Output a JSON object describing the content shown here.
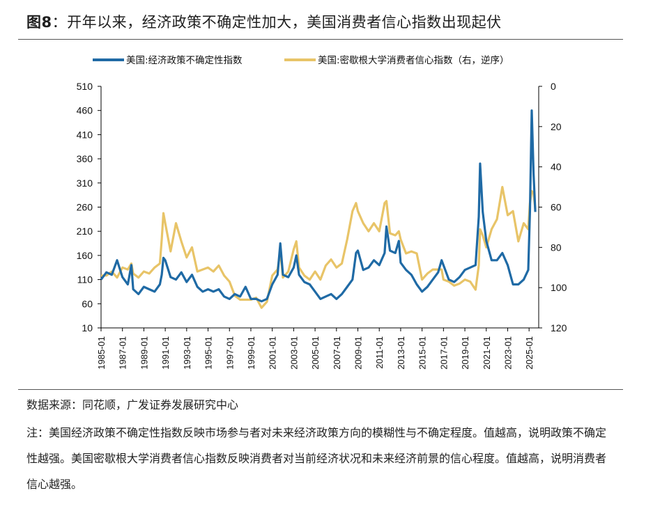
{
  "figure": {
    "label": "图8",
    "colon": "：",
    "title": "开年以来，经济政策不确定性加大，美国消费者信心指数出现起伏"
  },
  "chart_data": {
    "type": "line",
    "legend_position": "top-center",
    "series": [
      {
        "name": "美国:经济政策不确定性指数",
        "axis": "left",
        "color": "#1f6aa5",
        "points": [
          [
            1985.0,
            110
          ],
          [
            1985.5,
            125
          ],
          [
            1986.0,
            120
          ],
          [
            1986.5,
            150
          ],
          [
            1987.0,
            115
          ],
          [
            1987.5,
            100
          ],
          [
            1987.83,
            140
          ],
          [
            1988.0,
            90
          ],
          [
            1988.5,
            80
          ],
          [
            1989.0,
            95
          ],
          [
            1989.5,
            90
          ],
          [
            1990.0,
            85
          ],
          [
            1990.5,
            100
          ],
          [
            1990.67,
            120
          ],
          [
            1990.83,
            155
          ],
          [
            1991.0,
            150
          ],
          [
            1991.5,
            115
          ],
          [
            1992.0,
            110
          ],
          [
            1992.5,
            125
          ],
          [
            1993.0,
            105
          ],
          [
            1993.5,
            120
          ],
          [
            1994.0,
            95
          ],
          [
            1994.5,
            85
          ],
          [
            1995.0,
            90
          ],
          [
            1995.5,
            85
          ],
          [
            1996.0,
            90
          ],
          [
            1996.5,
            75
          ],
          [
            1997.0,
            70
          ],
          [
            1997.5,
            80
          ],
          [
            1998.0,
            75
          ],
          [
            1998.5,
            95
          ],
          [
            1999.0,
            70
          ],
          [
            1999.5,
            70
          ],
          [
            2000.0,
            65
          ],
          [
            2000.5,
            70
          ],
          [
            2001.0,
            100
          ],
          [
            2001.5,
            120
          ],
          [
            2001.75,
            185
          ],
          [
            2002.0,
            120
          ],
          [
            2002.5,
            115
          ],
          [
            2003.0,
            135
          ],
          [
            2003.25,
            160
          ],
          [
            2003.5,
            120
          ],
          [
            2004.0,
            105
          ],
          [
            2004.5,
            100
          ],
          [
            2005.0,
            85
          ],
          [
            2005.5,
            70
          ],
          [
            2006.0,
            75
          ],
          [
            2006.5,
            80
          ],
          [
            2007.0,
            70
          ],
          [
            2007.5,
            80
          ],
          [
            2008.0,
            95
          ],
          [
            2008.5,
            110
          ],
          [
            2008.83,
            165
          ],
          [
            2009.0,
            170
          ],
          [
            2009.5,
            130
          ],
          [
            2010.0,
            135
          ],
          [
            2010.5,
            150
          ],
          [
            2011.0,
            140
          ],
          [
            2011.5,
            165
          ],
          [
            2011.67,
            220
          ],
          [
            2012.0,
            170
          ],
          [
            2012.5,
            165
          ],
          [
            2012.83,
            190
          ],
          [
            2013.0,
            145
          ],
          [
            2013.5,
            130
          ],
          [
            2014.0,
            120
          ],
          [
            2014.5,
            100
          ],
          [
            2015.0,
            85
          ],
          [
            2015.5,
            95
          ],
          [
            2016.0,
            110
          ],
          [
            2016.5,
            125
          ],
          [
            2016.83,
            150
          ],
          [
            2017.0,
            140
          ],
          [
            2017.5,
            110
          ],
          [
            2018.0,
            105
          ],
          [
            2018.5,
            115
          ],
          [
            2019.0,
            130
          ],
          [
            2019.5,
            135
          ],
          [
            2020.0,
            140
          ],
          [
            2020.3,
            240
          ],
          [
            2020.42,
            350
          ],
          [
            2020.67,
            250
          ],
          [
            2021.0,
            190
          ],
          [
            2021.5,
            150
          ],
          [
            2022.0,
            150
          ],
          [
            2022.5,
            165
          ],
          [
            2023.0,
            140
          ],
          [
            2023.5,
            100
          ],
          [
            2024.0,
            100
          ],
          [
            2024.5,
            110
          ],
          [
            2024.92,
            130
          ],
          [
            2025.08,
            250
          ],
          [
            2025.25,
            460
          ],
          [
            2025.42,
            330
          ],
          [
            2025.58,
            250
          ]
        ]
      },
      {
        "name": "美国:密歇根大学消费者信心指数（右，逆序）",
        "axis": "right",
        "color": "#e8c468",
        "points": [
          [
            1985.0,
            94
          ],
          [
            1985.5,
            94
          ],
          [
            1986.0,
            92
          ],
          [
            1986.5,
            95
          ],
          [
            1987.0,
            90
          ],
          [
            1987.5,
            91
          ],
          [
            1987.83,
            88
          ],
          [
            1988.0,
            93
          ],
          [
            1988.5,
            95
          ],
          [
            1989.0,
            92
          ],
          [
            1989.5,
            93
          ],
          [
            1990.0,
            90
          ],
          [
            1990.5,
            88
          ],
          [
            1990.67,
            76
          ],
          [
            1990.83,
            63
          ],
          [
            1991.0,
            68
          ],
          [
            1991.5,
            82
          ],
          [
            1992.0,
            68
          ],
          [
            1992.5,
            77
          ],
          [
            1993.0,
            85
          ],
          [
            1993.5,
            80
          ],
          [
            1994.0,
            92
          ],
          [
            1994.5,
            91
          ],
          [
            1995.0,
            90
          ],
          [
            1995.5,
            92
          ],
          [
            1996.0,
            89
          ],
          [
            1996.5,
            94
          ],
          [
            1997.0,
            97
          ],
          [
            1997.5,
            104
          ],
          [
            1998.0,
            106
          ],
          [
            1998.5,
            106
          ],
          [
            1999.0,
            106
          ],
          [
            1999.5,
            105
          ],
          [
            2000.0,
            110
          ],
          [
            2000.5,
            107
          ],
          [
            2001.0,
            94
          ],
          [
            2001.5,
            91
          ],
          [
            2001.75,
            82
          ],
          [
            2002.0,
            95
          ],
          [
            2002.5,
            92
          ],
          [
            2003.0,
            81
          ],
          [
            2003.25,
            77
          ],
          [
            2003.5,
            90
          ],
          [
            2004.0,
            94
          ],
          [
            2004.5,
            96
          ],
          [
            2005.0,
            92
          ],
          [
            2005.5,
            96
          ],
          [
            2006.0,
            89
          ],
          [
            2006.5,
            86
          ],
          [
            2007.0,
            90
          ],
          [
            2007.5,
            88
          ],
          [
            2008.0,
            76
          ],
          [
            2008.5,
            62
          ],
          [
            2008.83,
            58
          ],
          [
            2009.0,
            62
          ],
          [
            2009.5,
            68
          ],
          [
            2010.0,
            72
          ],
          [
            2010.5,
            68
          ],
          [
            2011.0,
            72
          ],
          [
            2011.5,
            58
          ],
          [
            2011.67,
            57
          ],
          [
            2012.0,
            73
          ],
          [
            2012.5,
            74
          ],
          [
            2012.83,
            72
          ],
          [
            2013.0,
            76
          ],
          [
            2013.5,
            83
          ],
          [
            2014.0,
            82
          ],
          [
            2014.5,
            83
          ],
          [
            2015.0,
            96
          ],
          [
            2015.5,
            93
          ],
          [
            2016.0,
            91
          ],
          [
            2016.5,
            91
          ],
          [
            2016.83,
            91
          ],
          [
            2017.0,
            96
          ],
          [
            2017.5,
            97
          ],
          [
            2018.0,
            99
          ],
          [
            2018.5,
            98
          ],
          [
            2019.0,
            96
          ],
          [
            2019.5,
            97
          ],
          [
            2020.0,
            101
          ],
          [
            2020.3,
            89
          ],
          [
            2020.42,
            71
          ],
          [
            2020.67,
            74
          ],
          [
            2021.0,
            80
          ],
          [
            2021.5,
            71
          ],
          [
            2022.0,
            66
          ],
          [
            2022.5,
            50
          ],
          [
            2023.0,
            64
          ],
          [
            2023.5,
            62
          ],
          [
            2024.0,
            77
          ],
          [
            2024.5,
            68
          ],
          [
            2024.92,
            71
          ],
          [
            2025.08,
            58
          ],
          [
            2025.25,
            52
          ],
          [
            2025.42,
            53
          ],
          [
            2025.58,
            61
          ]
        ]
      }
    ],
    "xlim": [
      1985,
      2025.9
    ],
    "x_ticks": [
      "1985-01",
      "1987-01",
      "1989-01",
      "1991-01",
      "1993-01",
      "1995-01",
      "1997-01",
      "1999-01",
      "2001-01",
      "2003-01",
      "2005-01",
      "2007-01",
      "2009-01",
      "2011-01",
      "2013-01",
      "2015-01",
      "2017-01",
      "2019-01",
      "2021-01",
      "2023-01",
      "2025-01"
    ],
    "y_left": {
      "min": 10,
      "max": 510,
      "ticks": [
        510,
        460,
        410,
        360,
        310,
        260,
        210,
        160,
        110,
        60,
        10
      ]
    },
    "y_right": {
      "min": 0,
      "max": 120,
      "inverted": true,
      "ticks": [
        0,
        20,
        40,
        60,
        80,
        100,
        120
      ]
    }
  },
  "source": "数据来源：同花顺，广发证券发展研究中心",
  "note": "注：美国经济政策不确定性指数反映市场参与者对未来经济政策方向的模糊性与不确定程度。值越高，说明政策不确定性越强。美国密歇根大学消费者信心指数反映消费者对当前经济状况和未来经济前景的信心程度。值越高，说明消费者信心越强。"
}
